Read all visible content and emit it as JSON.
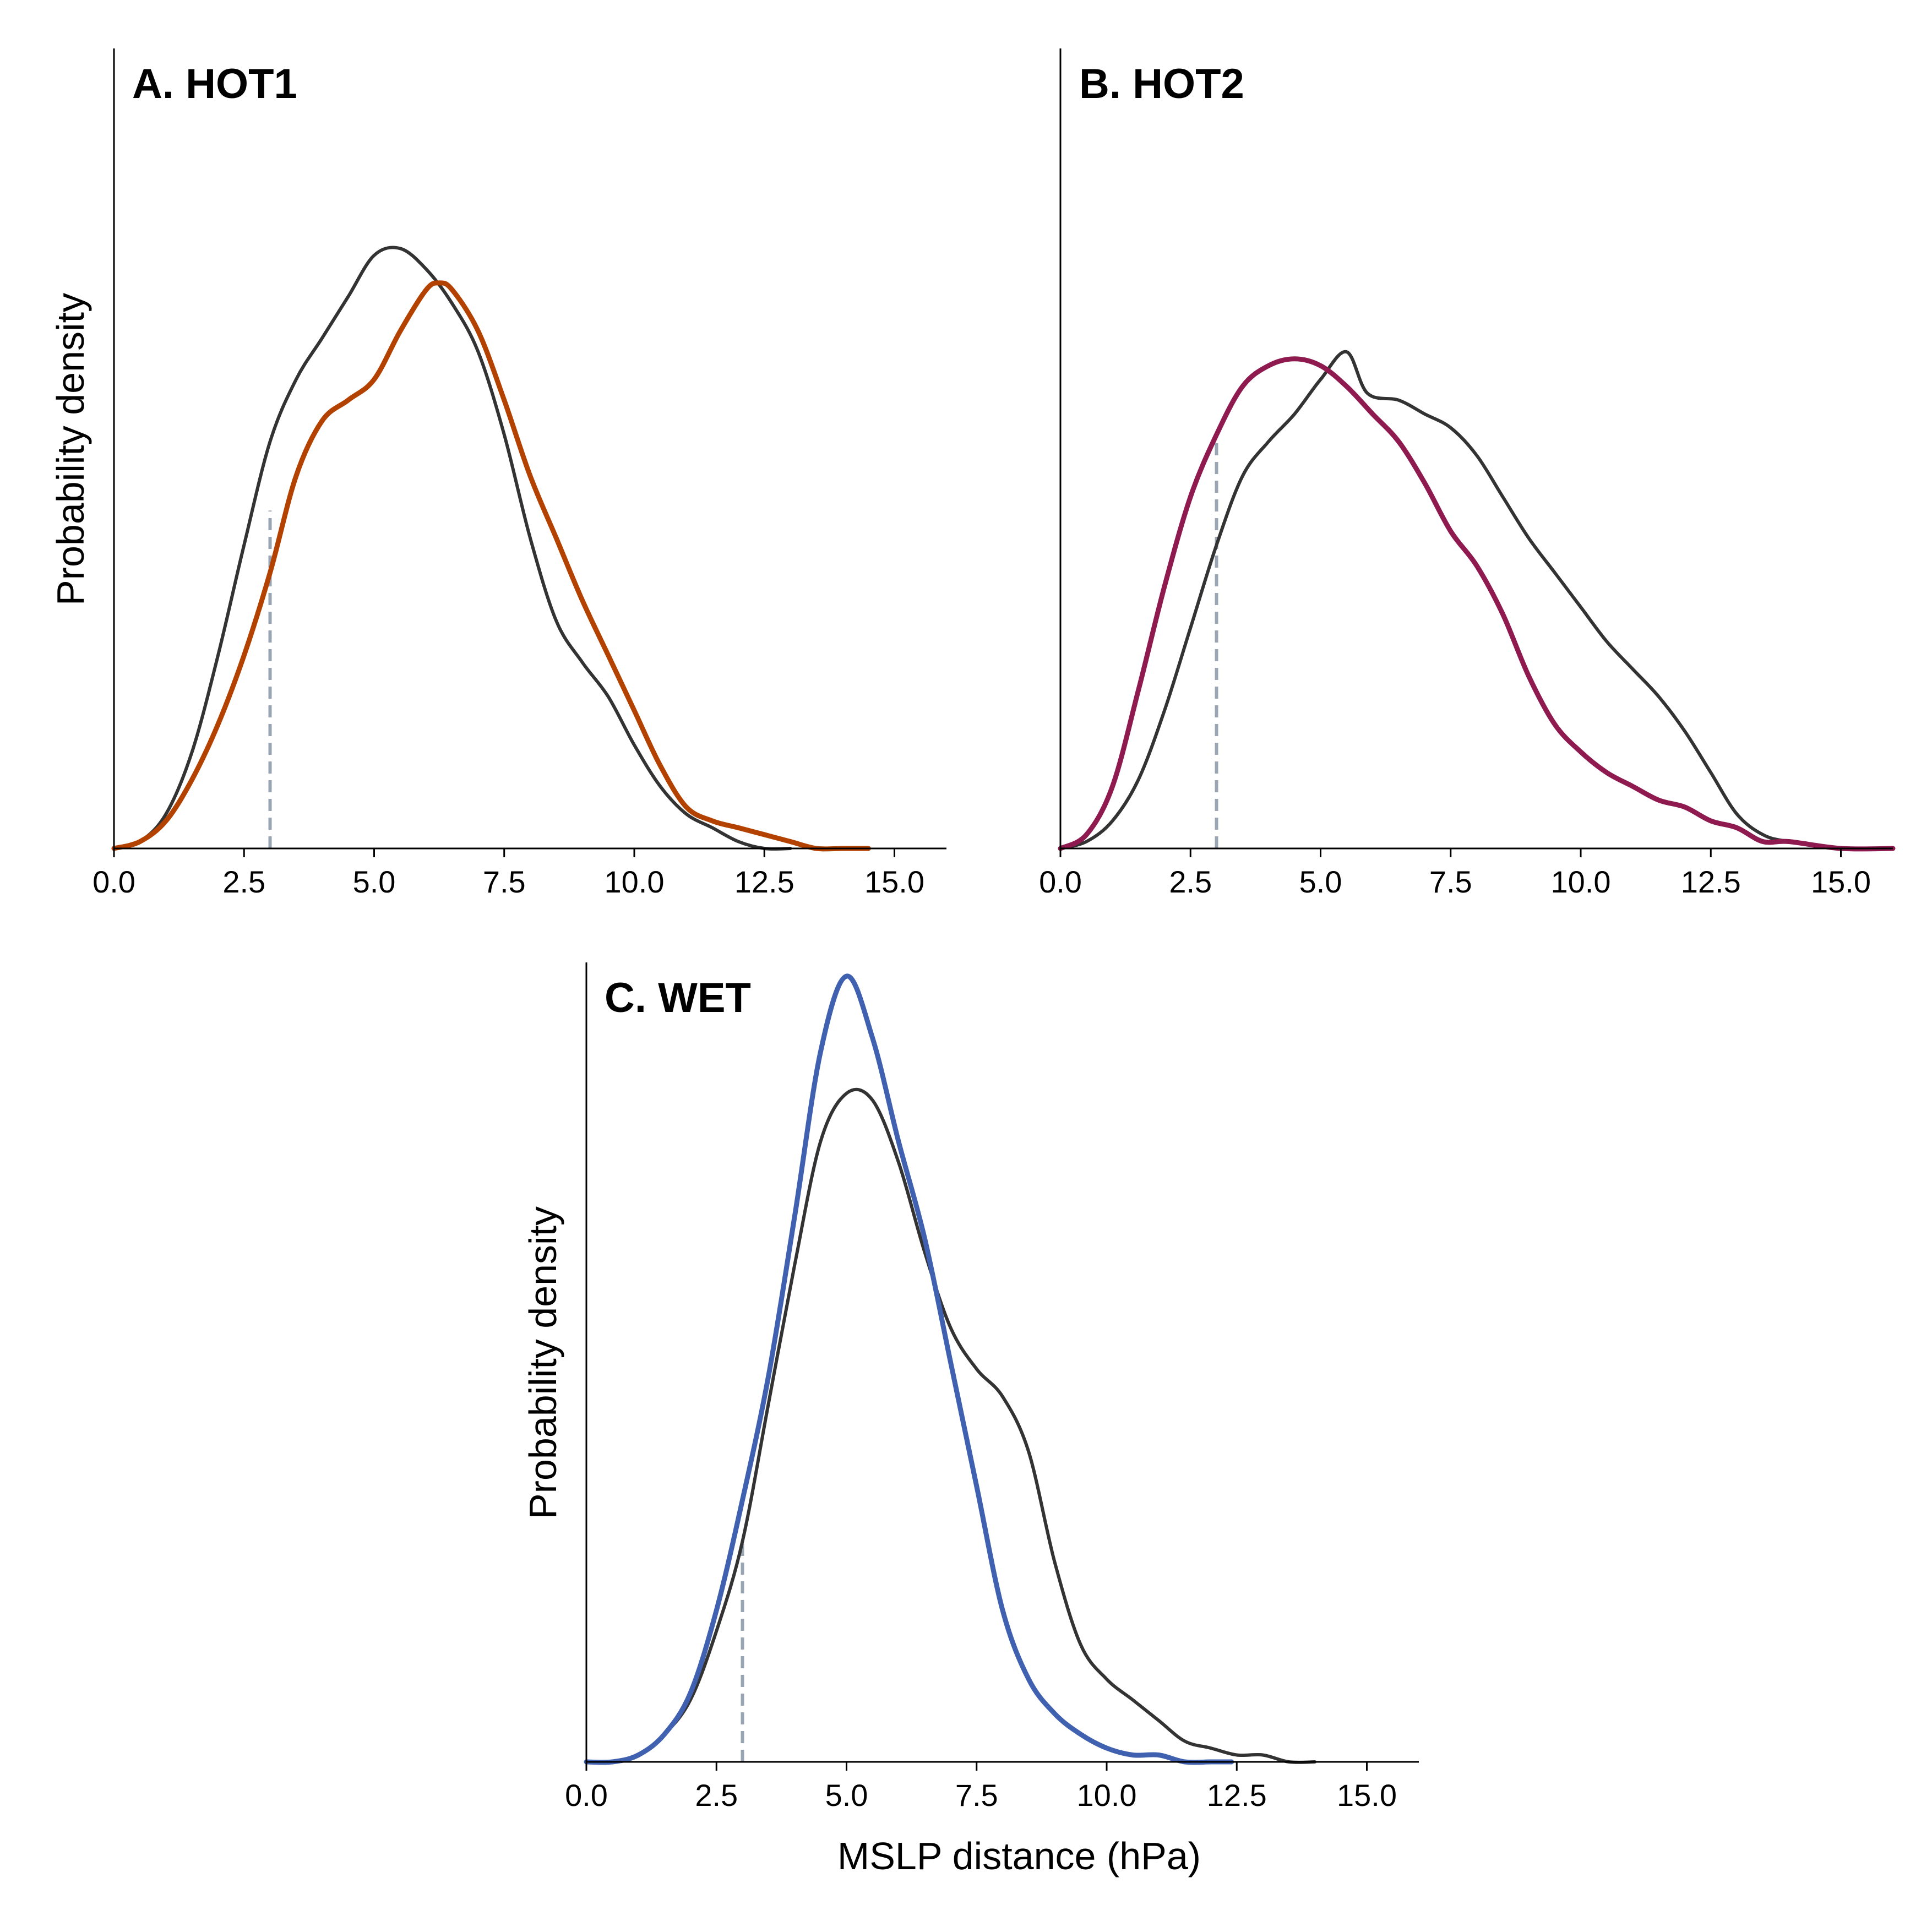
{
  "figure": {
    "xlabel": "MSLP distance (hPa)"
  },
  "colors": {
    "reference": "#333333",
    "threshold": "#9aa5b4",
    "hot1": "#b34100",
    "hot2": "#8e1a50",
    "wet": "#4060b0"
  },
  "chart_data": [
    {
      "type": "line",
      "title": "A. HOT1",
      "xlabel": "",
      "ylabel": "Probability density",
      "xlim": [
        0,
        16
      ],
      "ylim": [
        0,
        1.16
      ],
      "xticks": [
        "0.0",
        "2.5",
        "5.0",
        "7.5",
        "10.0",
        "12.5",
        "15.0"
      ],
      "xtick_values": [
        0,
        2.5,
        5,
        7.5,
        10,
        12.5,
        15
      ],
      "threshold_x": 3.0,
      "threshold_y": 0.49,
      "series": [
        {
          "color": "#333333",
          "points": [
            [
              0,
              0
            ],
            [
              0.5,
              0.01
            ],
            [
              1,
              0.05
            ],
            [
              1.5,
              0.14
            ],
            [
              2,
              0.28
            ],
            [
              2.5,
              0.44
            ],
            [
              3,
              0.59
            ],
            [
              3.5,
              0.68
            ],
            [
              4,
              0.74
            ],
            [
              4.5,
              0.8
            ],
            [
              5,
              0.86
            ],
            [
              5.5,
              0.87
            ],
            [
              6,
              0.84
            ],
            [
              6.5,
              0.79
            ],
            [
              7,
              0.72
            ],
            [
              7.5,
              0.6
            ],
            [
              8,
              0.45
            ],
            [
              8.5,
              0.33
            ],
            [
              9,
              0.27
            ],
            [
              9.5,
              0.22
            ],
            [
              10,
              0.15
            ],
            [
              10.5,
              0.09
            ],
            [
              11,
              0.05
            ],
            [
              11.5,
              0.03
            ],
            [
              12,
              0.01
            ],
            [
              12.5,
              0
            ],
            [
              13,
              0
            ]
          ]
        },
        {
          "color": "#b34100",
          "points": [
            [
              0,
              0
            ],
            [
              0.5,
              0.01
            ],
            [
              1,
              0.04
            ],
            [
              1.5,
              0.1
            ],
            [
              2,
              0.18
            ],
            [
              2.5,
              0.28
            ],
            [
              3,
              0.4
            ],
            [
              3.5,
              0.54
            ],
            [
              4,
              0.62
            ],
            [
              4.5,
              0.65
            ],
            [
              5,
              0.68
            ],
            [
              5.5,
              0.75
            ],
            [
              6,
              0.81
            ],
            [
              6.25,
              0.82
            ],
            [
              6.5,
              0.81
            ],
            [
              7,
              0.75
            ],
            [
              7.5,
              0.65
            ],
            [
              8,
              0.54
            ],
            [
              8.5,
              0.45
            ],
            [
              9,
              0.36
            ],
            [
              9.5,
              0.28
            ],
            [
              10,
              0.2
            ],
            [
              10.5,
              0.12
            ],
            [
              11,
              0.06
            ],
            [
              11.5,
              0.04
            ],
            [
              12,
              0.03
            ],
            [
              12.5,
              0.02
            ],
            [
              13,
              0.01
            ],
            [
              13.5,
              0
            ],
            [
              14,
              0
            ],
            [
              14.5,
              0
            ]
          ]
        }
      ]
    },
    {
      "type": "line",
      "title": "B. HOT2",
      "xlabel": "",
      "ylabel": "",
      "xlim": [
        0,
        16
      ],
      "ylim": [
        0,
        1.16
      ],
      "xticks": [
        "0.0",
        "2.5",
        "5.0",
        "7.5",
        "10.0",
        "12.5",
        "15.0"
      ],
      "xtick_values": [
        0,
        2.5,
        5,
        7.5,
        10,
        12.5,
        15
      ],
      "threshold_x": 3.0,
      "threshold_y": 0.59,
      "series": [
        {
          "color": "#333333",
          "points": [
            [
              0,
              0
            ],
            [
              0.5,
              0.01
            ],
            [
              1,
              0.04
            ],
            [
              1.5,
              0.1
            ],
            [
              2,
              0.2
            ],
            [
              2.5,
              0.32
            ],
            [
              3,
              0.44
            ],
            [
              3.5,
              0.54
            ],
            [
              4,
              0.59
            ],
            [
              4.5,
              0.63
            ],
            [
              5,
              0.68
            ],
            [
              5.5,
              0.72
            ],
            [
              5.9,
              0.66
            ],
            [
              6.5,
              0.65
            ],
            [
              7,
              0.63
            ],
            [
              7.5,
              0.61
            ],
            [
              8,
              0.57
            ],
            [
              8.5,
              0.51
            ],
            [
              9,
              0.45
            ],
            [
              9.5,
              0.4
            ],
            [
              10,
              0.35
            ],
            [
              10.5,
              0.3
            ],
            [
              11,
              0.26
            ],
            [
              11.5,
              0.22
            ],
            [
              12,
              0.17
            ],
            [
              12.5,
              0.11
            ],
            [
              13,
              0.05
            ],
            [
              13.5,
              0.02
            ],
            [
              14,
              0.01
            ],
            [
              15,
              0
            ],
            [
              16,
              0
            ]
          ]
        },
        {
          "color": "#8e1a50",
          "points": [
            [
              0,
              0
            ],
            [
              0.5,
              0.02
            ],
            [
              1,
              0.09
            ],
            [
              1.5,
              0.23
            ],
            [
              2,
              0.38
            ],
            [
              2.5,
              0.51
            ],
            [
              3,
              0.6
            ],
            [
              3.5,
              0.67
            ],
            [
              4,
              0.7
            ],
            [
              4.5,
              0.71
            ],
            [
              5,
              0.7
            ],
            [
              5.5,
              0.67
            ],
            [
              6,
              0.63
            ],
            [
              6.5,
              0.59
            ],
            [
              7,
              0.53
            ],
            [
              7.5,
              0.46
            ],
            [
              8,
              0.41
            ],
            [
              8.5,
              0.34
            ],
            [
              9,
              0.25
            ],
            [
              9.5,
              0.18
            ],
            [
              10,
              0.14
            ],
            [
              10.5,
              0.11
            ],
            [
              11,
              0.09
            ],
            [
              11.5,
              0.07
            ],
            [
              12,
              0.06
            ],
            [
              12.5,
              0.04
            ],
            [
              13,
              0.03
            ],
            [
              13.5,
              0.01
            ],
            [
              14,
              0.01
            ],
            [
              15,
              0
            ],
            [
              16,
              0
            ]
          ]
        }
      ]
    },
    {
      "type": "line",
      "title": "C. WET",
      "xlabel": "MSLP distance (hPa)",
      "ylabel": "Probability density",
      "xlim": [
        0,
        16
      ],
      "ylim": [
        0,
        1.16
      ],
      "xticks": [
        "0.0",
        "2.5",
        "5.0",
        "7.5",
        "10.0",
        "12.5",
        "15.0"
      ],
      "xtick_values": [
        0,
        2.5,
        5,
        7.5,
        10,
        12.5,
        15
      ],
      "threshold_x": 3.0,
      "threshold_y": 0.32,
      "series": [
        {
          "color": "#333333",
          "points": [
            [
              0,
              0
            ],
            [
              0.5,
              0
            ],
            [
              1,
              0.01
            ],
            [
              1.5,
              0.04
            ],
            [
              2,
              0.09
            ],
            [
              2.5,
              0.19
            ],
            [
              3,
              0.32
            ],
            [
              3.5,
              0.52
            ],
            [
              4,
              0.72
            ],
            [
              4.5,
              0.9
            ],
            [
              5,
              0.97
            ],
            [
              5.5,
              0.96
            ],
            [
              6,
              0.87
            ],
            [
              6.5,
              0.74
            ],
            [
              7,
              0.63
            ],
            [
              7.5,
              0.57
            ],
            [
              8,
              0.53
            ],
            [
              8.5,
              0.45
            ],
            [
              9,
              0.29
            ],
            [
              9.5,
              0.17
            ],
            [
              10,
              0.12
            ],
            [
              10.5,
              0.09
            ],
            [
              11,
              0.06
            ],
            [
              11.5,
              0.03
            ],
            [
              12,
              0.02
            ],
            [
              12.5,
              0.01
            ],
            [
              13,
              0.01
            ],
            [
              13.5,
              0
            ],
            [
              14,
              0
            ]
          ]
        },
        {
          "color": "#4060b0",
          "points": [
            [
              0,
              0
            ],
            [
              0.5,
              0
            ],
            [
              1,
              0.01
            ],
            [
              1.5,
              0.04
            ],
            [
              2,
              0.1
            ],
            [
              2.5,
              0.22
            ],
            [
              3,
              0.38
            ],
            [
              3.5,
              0.56
            ],
            [
              4,
              0.79
            ],
            [
              4.5,
              1.03
            ],
            [
              5,
              1.14
            ],
            [
              5.5,
              1.05
            ],
            [
              6,
              0.9
            ],
            [
              6.5,
              0.76
            ],
            [
              7,
              0.58
            ],
            [
              7.5,
              0.4
            ],
            [
              8,
              0.22
            ],
            [
              8.5,
              0.12
            ],
            [
              9,
              0.07
            ],
            [
              9.5,
              0.04
            ],
            [
              10,
              0.02
            ],
            [
              10.5,
              0.01
            ],
            [
              11,
              0.01
            ],
            [
              11.5,
              0
            ],
            [
              12,
              0
            ],
            [
              12.4,
              0
            ]
          ]
        }
      ]
    }
  ]
}
